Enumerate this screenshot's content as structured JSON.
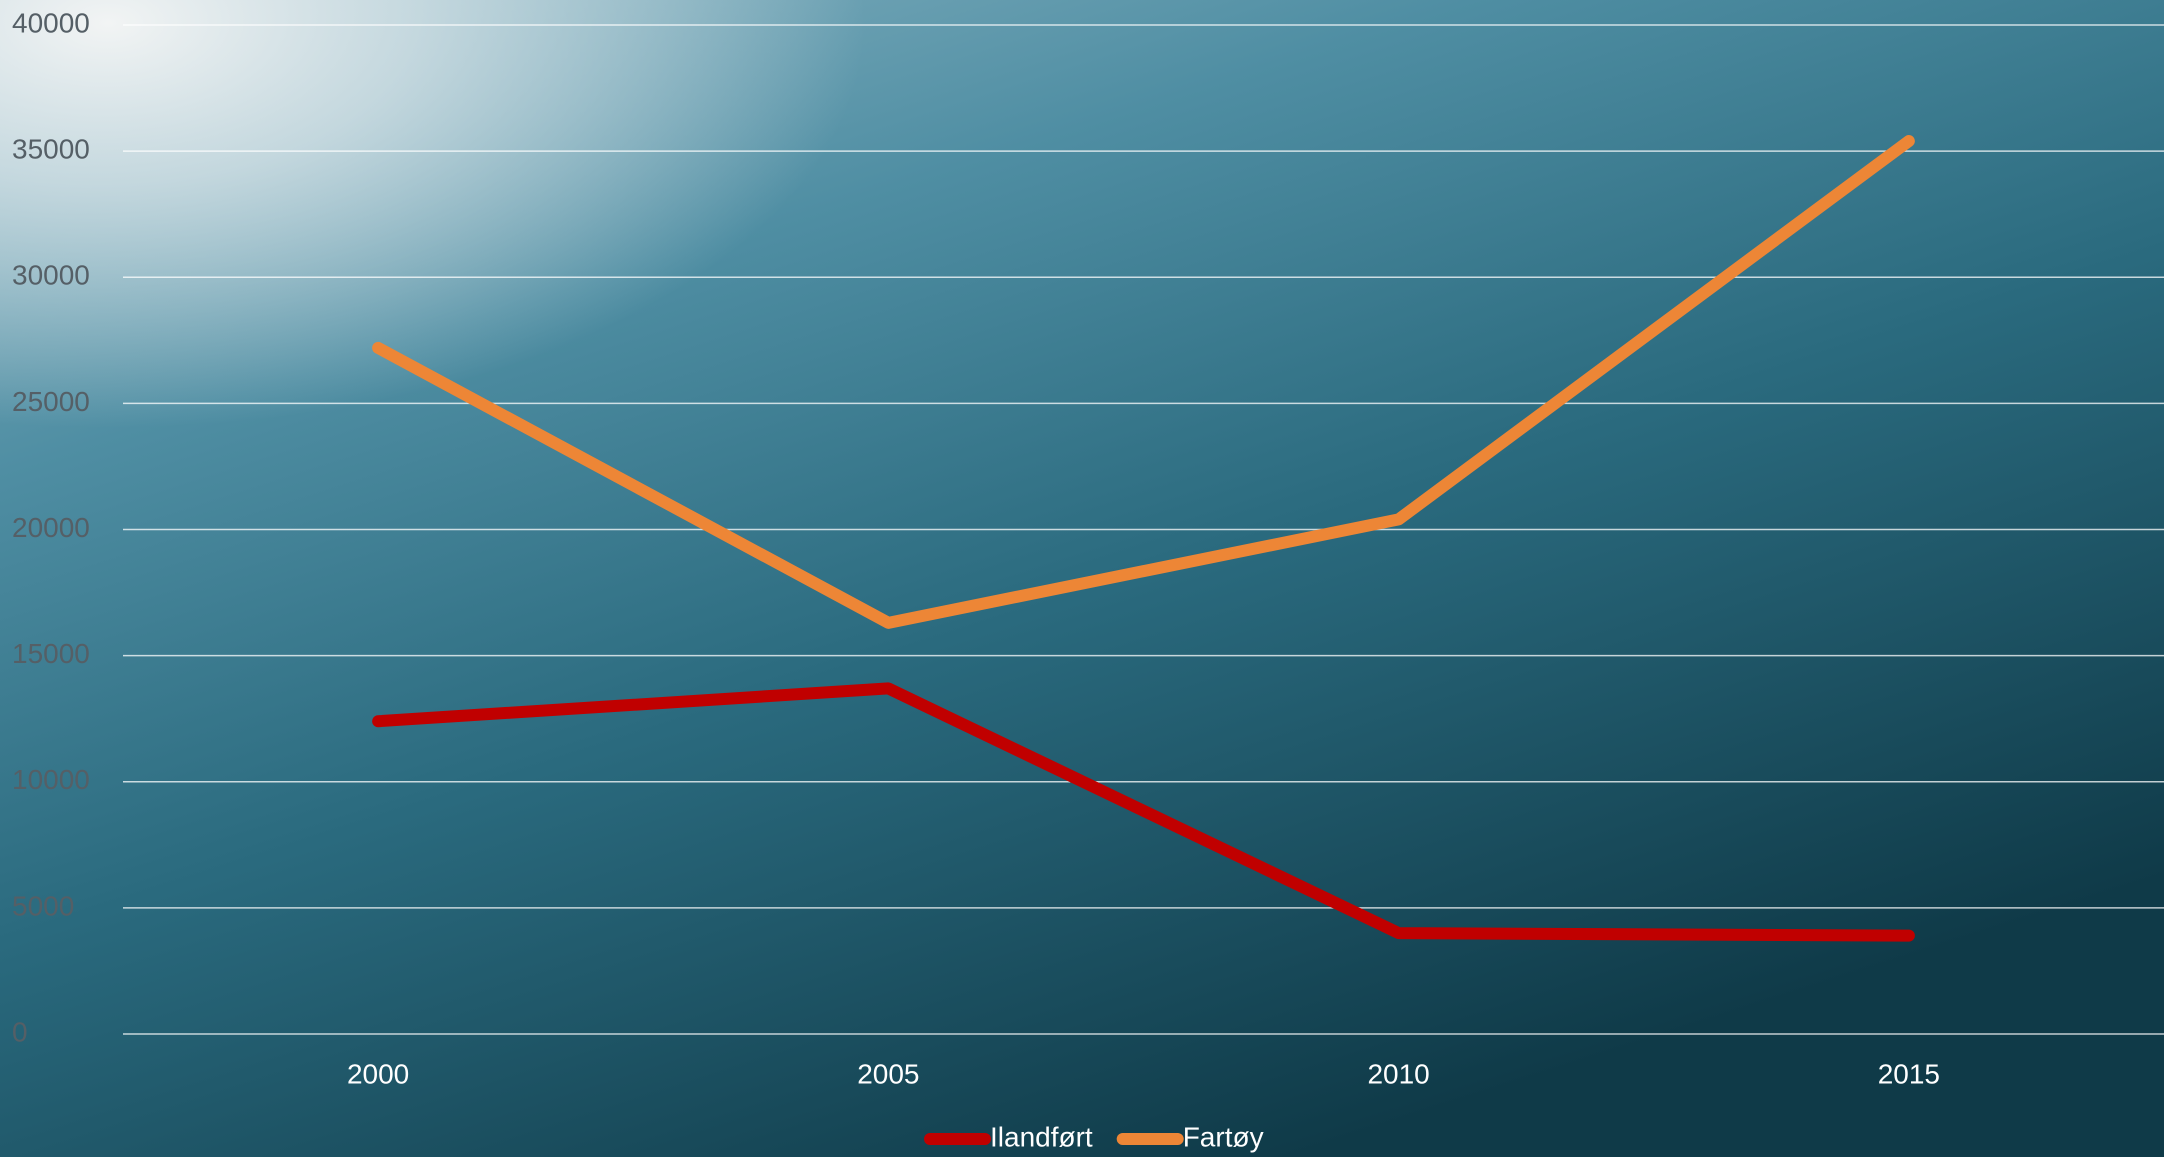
{
  "chart_data": {
    "type": "line",
    "categories": [
      "2000",
      "2005",
      "2010",
      "2015"
    ],
    "series": [
      {
        "name": "Ilandført",
        "color": "#c00000",
        "values": [
          12400,
          13700,
          4000,
          3900
        ]
      },
      {
        "name": "Fartøy",
        "color": "#ed8636",
        "values": [
          27200,
          16300,
          20400,
          35400
        ]
      }
    ],
    "ylim": [
      0,
      40000
    ],
    "yticks": [
      0,
      5000,
      10000,
      15000,
      20000,
      25000,
      30000,
      35000,
      40000
    ],
    "grid": true,
    "legend": "bottom"
  }
}
